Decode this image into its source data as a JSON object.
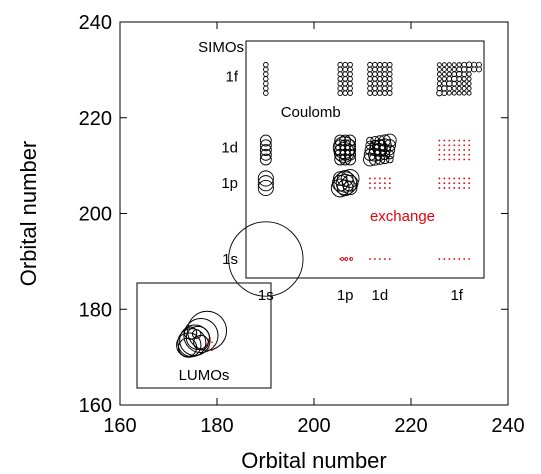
{
  "chart_data": {
    "type": "scatter",
    "xlabel": "Orbital number",
    "ylabel": "Orbital number",
    "xlim": [
      160,
      240
    ],
    "ylim": [
      160,
      240
    ],
    "xticks": [
      160,
      180,
      200,
      220,
      240
    ],
    "yticks": [
      160,
      180,
      200,
      220,
      240
    ],
    "inset_lumo": {
      "label": "LUMOs",
      "xlim": [
        164,
        186
      ],
      "ylim": [
        164,
        186
      ]
    },
    "inset_simo": {
      "label": "SIMOs",
      "xlim": [
        186,
        234
      ],
      "ylim": [
        186,
        236
      ],
      "x_tick_labels": [
        {
          "label": "1s",
          "at": 190
        },
        {
          "label": "1p",
          "at": 206
        },
        {
          "label": "1d",
          "at": 213
        },
        {
          "label": "1f",
          "at": 228.5
        }
      ],
      "y_tick_labels": [
        {
          "label": "1s",
          "at": 190
        },
        {
          "label": "1p",
          "at": 206
        },
        {
          "label": "1d",
          "at": 213.5
        },
        {
          "label": "1f",
          "at": 228.5
        }
      ],
      "annotations": [
        {
          "text": "Coulomb",
          "x": 193,
          "y": 220,
          "color": "#000000"
        },
        {
          "text": "exchange",
          "x": 211,
          "y": 198,
          "color": "#e8000b"
        }
      ]
    },
    "colors": {
      "coulomb": "#000000",
      "exchange": "#e8000b"
    }
  }
}
